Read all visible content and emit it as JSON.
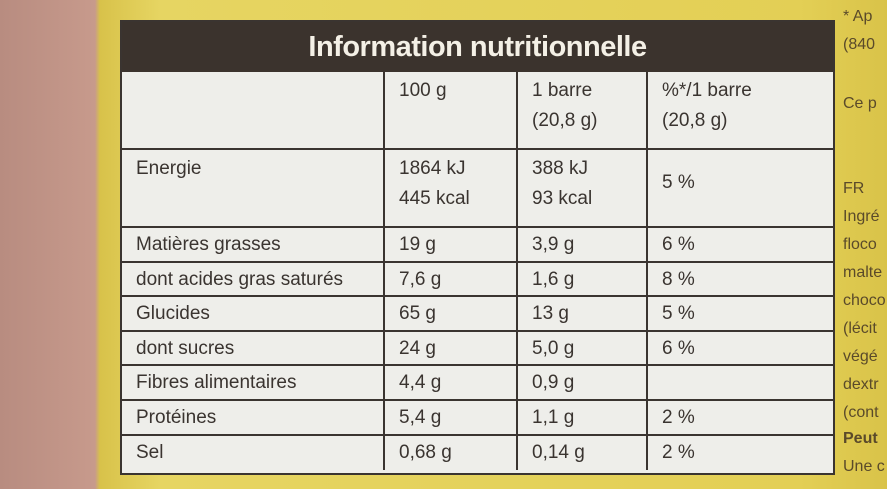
{
  "header": {
    "title": "Information nutritionnelle"
  },
  "table": {
    "columns": [
      [
        "100 g"
      ],
      [
        "1 barre",
        "(20,8 g)"
      ],
      [
        "%*/1 barre",
        "(20,8 g)"
      ]
    ],
    "rows": [
      [
        [
          "Energie"
        ],
        [
          "1864 kJ",
          "445 kcal"
        ],
        [
          "388 kJ",
          "93 kcal"
        ],
        [
          "5 %"
        ]
      ],
      [
        [
          "Matières grasses"
        ],
        [
          "19 g"
        ],
        [
          "3,9 g"
        ],
        [
          "6 %"
        ]
      ],
      [
        [
          "dont acides gras saturés"
        ],
        [
          "7,6 g"
        ],
        [
          "1,6 g"
        ],
        [
          "8 %"
        ]
      ],
      [
        [
          "Glucides"
        ],
        [
          "65 g"
        ],
        [
          "13 g"
        ],
        [
          "5 %"
        ]
      ],
      [
        [
          "dont sucres"
        ],
        [
          "24 g"
        ],
        [
          "5,0 g"
        ],
        [
          "6 %"
        ]
      ],
      [
        [
          "Fibres alimentaires"
        ],
        [
          "4,4 g"
        ],
        [
          "0,9 g"
        ]
      ],
      [
        [
          "Protéines"
        ],
        [
          "5,4 g"
        ],
        [
          "1,1 g"
        ],
        [
          "2 %"
        ]
      ],
      [
        [
          "Sel"
        ],
        [
          "0,68 g"
        ],
        [
          "0,14 g"
        ],
        [
          "2 %"
        ]
      ]
    ]
  },
  "side_text": [
    "* Ap",
    "(840",
    "Ce p",
    "FR",
    "Ingré",
    "floco",
    "malte",
    "choco",
    "(lécit",
    "végé",
    "dextr",
    "(cont",
    "Peut",
    "Une c"
  ]
}
